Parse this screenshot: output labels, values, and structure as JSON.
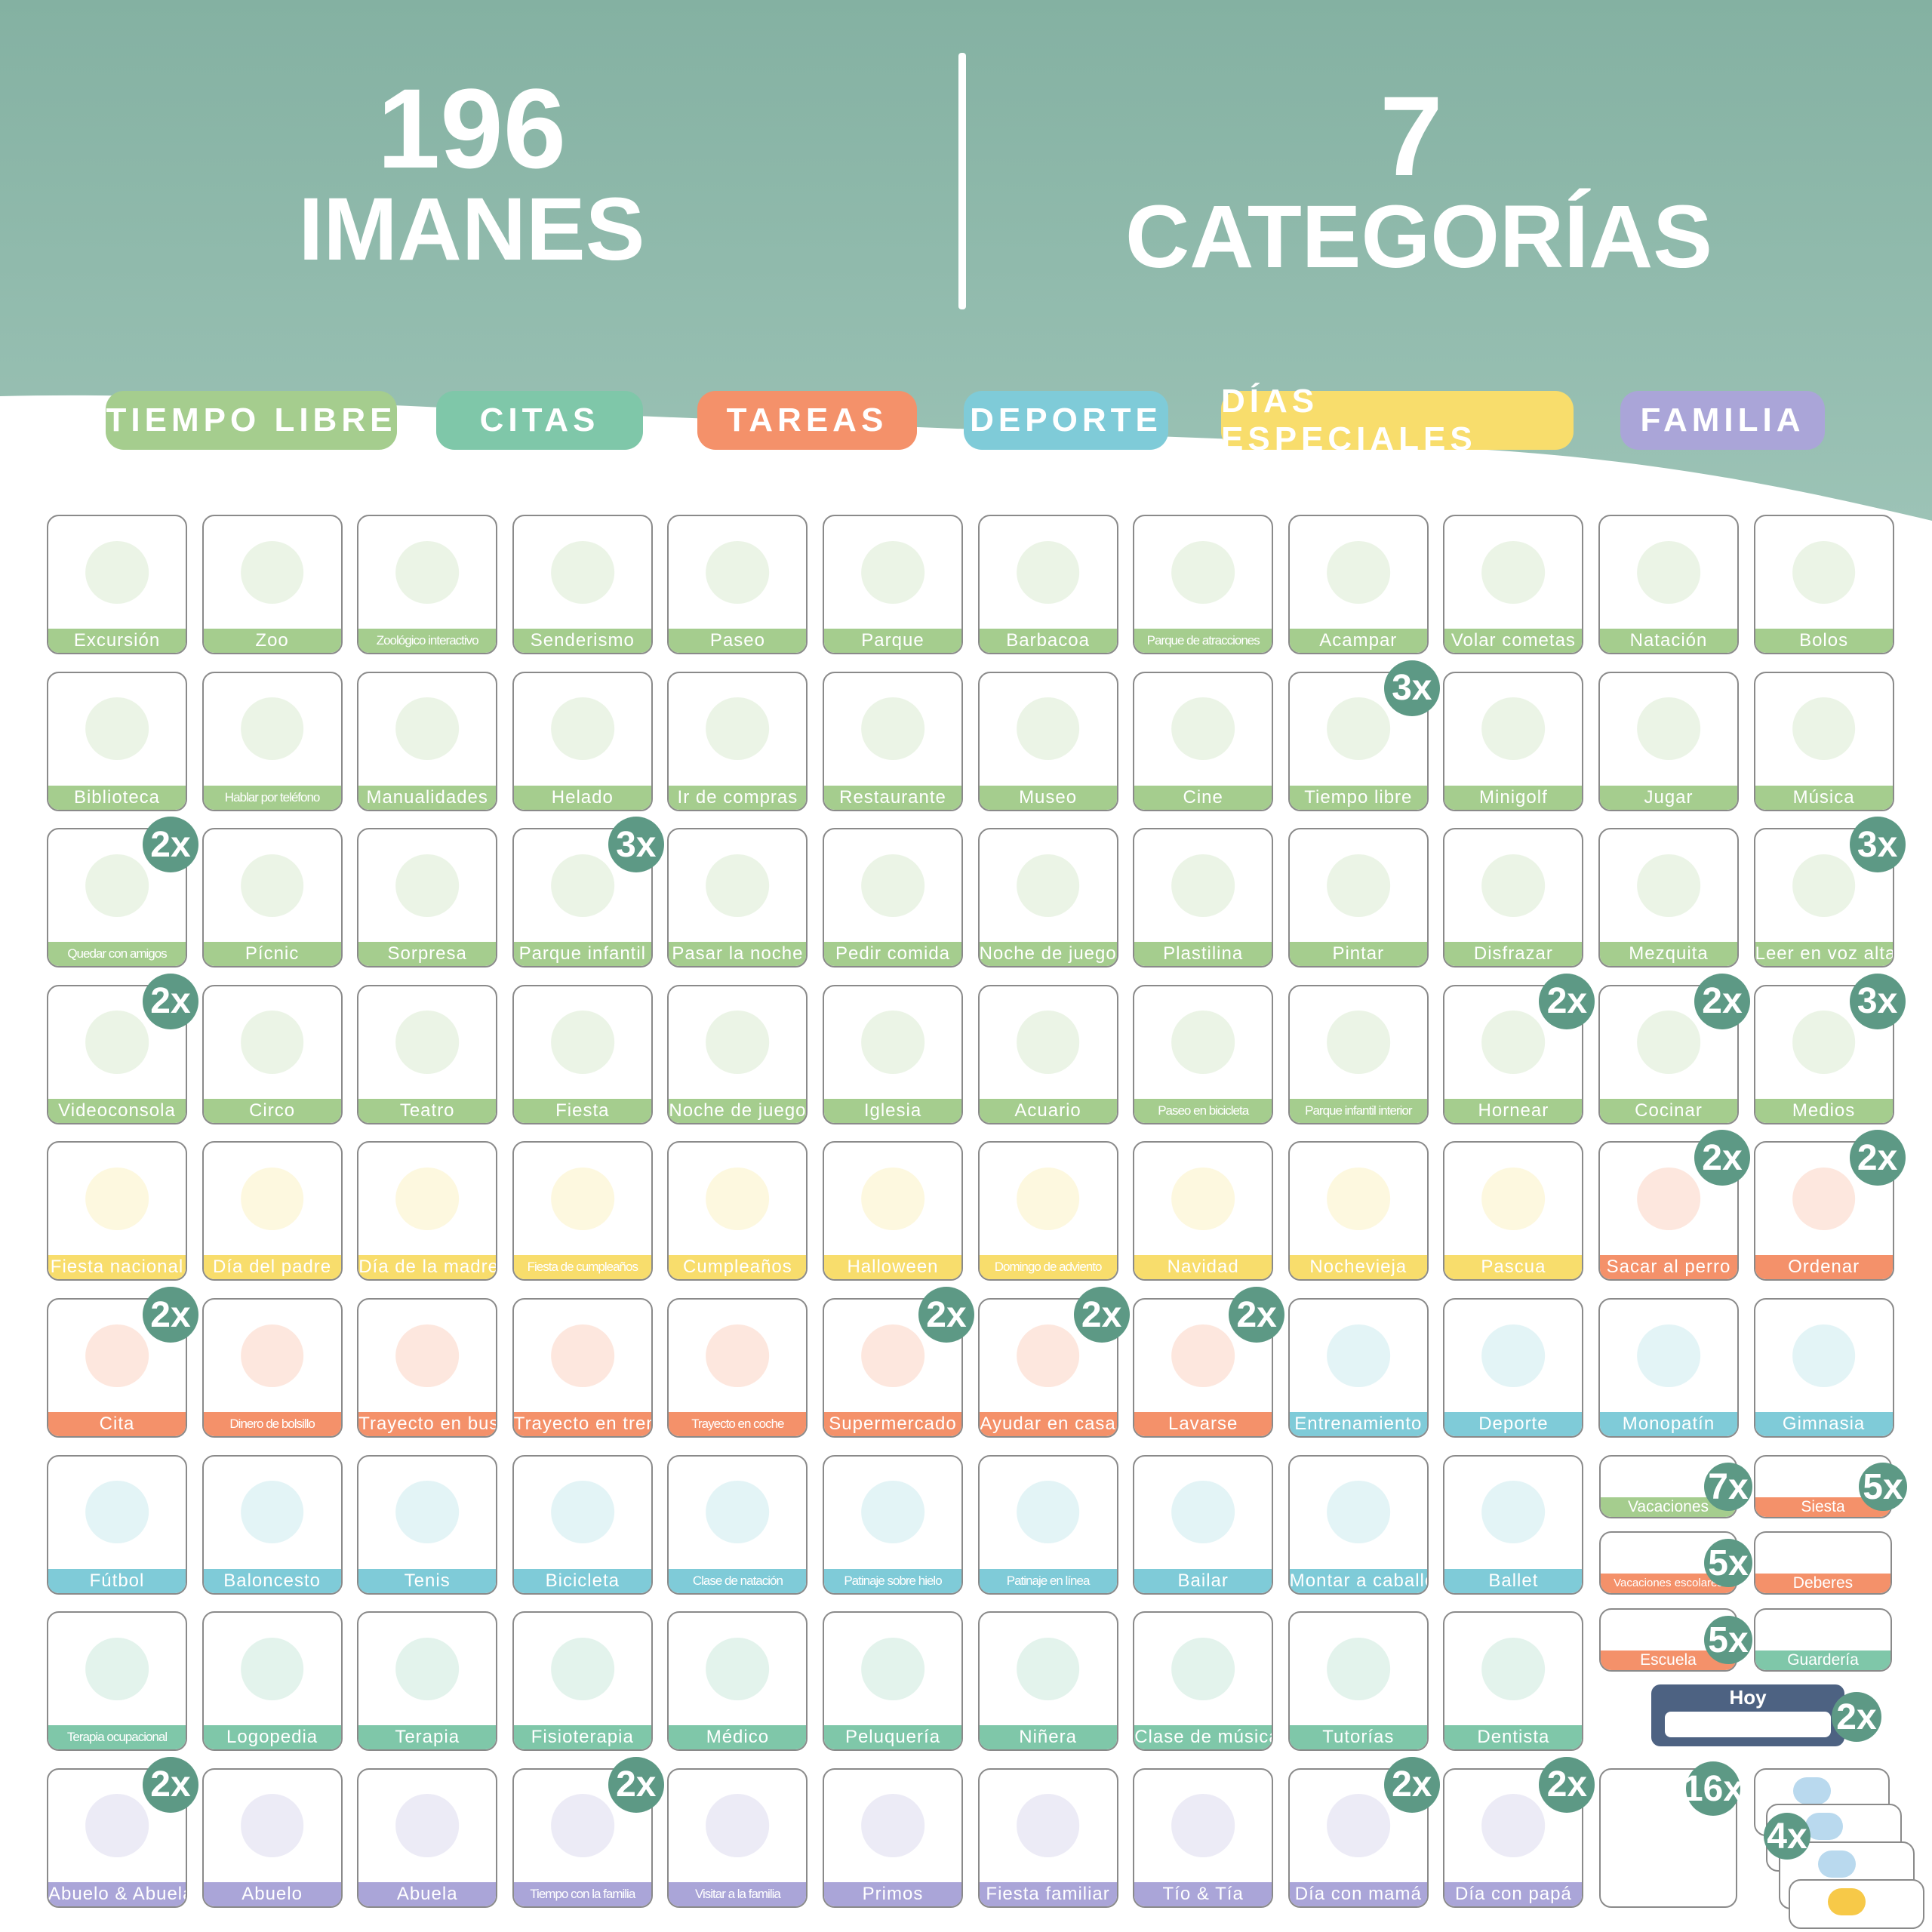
{
  "header": {
    "count": "196",
    "count_label": "IMANES",
    "cats": "7",
    "cats_label": "CATEGORÍAS"
  },
  "categories": [
    {
      "name": "TIEMPO LIBRE",
      "color": "#a5cd8e"
    },
    {
      "name": "CITAS",
      "color": "#7fc7a9"
    },
    {
      "name": "TAREAS",
      "color": "#f4916a"
    },
    {
      "name": "DEPORTE",
      "color": "#7fcbd8"
    },
    {
      "name": "DÍAS ESPECIALES",
      "color": "#f8dd6c"
    },
    {
      "name": "FAMILIA",
      "color": "#aaa5d8"
    }
  ],
  "cards": [
    {
      "label": "Excursión",
      "color": "#a5cd8e"
    },
    {
      "label": "Zoo",
      "color": "#a5cd8e"
    },
    {
      "label": "Zoológico interactivo",
      "color": "#a5cd8e"
    },
    {
      "label": "Senderismo",
      "color": "#a5cd8e"
    },
    {
      "label": "Paseo",
      "color": "#a5cd8e"
    },
    {
      "label": "Parque",
      "color": "#a5cd8e"
    },
    {
      "label": "Barbacoa",
      "color": "#a5cd8e"
    },
    {
      "label": "Parque de atracciones",
      "color": "#a5cd8e"
    },
    {
      "label": "Acampar",
      "color": "#a5cd8e"
    },
    {
      "label": "Volar cometas",
      "color": "#a5cd8e"
    },
    {
      "label": "Natación",
      "color": "#a5cd8e"
    },
    {
      "label": "Bolos",
      "color": "#a5cd8e"
    },
    {
      "label": "Biblioteca",
      "color": "#a5cd8e"
    },
    {
      "label": "Hablar por teléfono",
      "color": "#a5cd8e"
    },
    {
      "label": "Manualidades",
      "color": "#a5cd8e"
    },
    {
      "label": "Helado",
      "color": "#a5cd8e"
    },
    {
      "label": "Ir de compras",
      "color": "#a5cd8e"
    },
    {
      "label": "Restaurante",
      "color": "#a5cd8e"
    },
    {
      "label": "Museo",
      "color": "#a5cd8e"
    },
    {
      "label": "Cine",
      "color": "#a5cd8e"
    },
    {
      "label": "Tiempo libre",
      "color": "#a5cd8e",
      "badge": "3x"
    },
    {
      "label": "Minigolf",
      "color": "#a5cd8e"
    },
    {
      "label": "Jugar",
      "color": "#a5cd8e"
    },
    {
      "label": "Música",
      "color": "#a5cd8e"
    },
    {
      "label": "Quedar con amigos",
      "color": "#a5cd8e",
      "badge": "2x"
    },
    {
      "label": "Pícnic",
      "color": "#a5cd8e"
    },
    {
      "label": "Sorpresa",
      "color": "#a5cd8e"
    },
    {
      "label": "Parque infantil",
      "color": "#a5cd8e",
      "badge": "3x"
    },
    {
      "label": "Pasar la noche",
      "color": "#a5cd8e"
    },
    {
      "label": "Pedir comida",
      "color": "#a5cd8e"
    },
    {
      "label": "Noche de juegos",
      "color": "#a5cd8e"
    },
    {
      "label": "Plastilina",
      "color": "#a5cd8e"
    },
    {
      "label": "Pintar",
      "color": "#a5cd8e"
    },
    {
      "label": "Disfrazar",
      "color": "#a5cd8e"
    },
    {
      "label": "Mezquita",
      "color": "#a5cd8e"
    },
    {
      "label": "Leer en voz alta",
      "color": "#a5cd8e",
      "badge": "3x"
    },
    {
      "label": "Videoconsola",
      "color": "#a5cd8e",
      "badge": "2x"
    },
    {
      "label": "Circo",
      "color": "#a5cd8e"
    },
    {
      "label": "Teatro",
      "color": "#a5cd8e"
    },
    {
      "label": "Fiesta",
      "color": "#a5cd8e"
    },
    {
      "label": "Noche de juegos",
      "color": "#a5cd8e"
    },
    {
      "label": "Iglesia",
      "color": "#a5cd8e"
    },
    {
      "label": "Acuario",
      "color": "#a5cd8e"
    },
    {
      "label": "Paseo en bicicleta",
      "color": "#a5cd8e"
    },
    {
      "label": "Parque infantil interior",
      "color": "#a5cd8e"
    },
    {
      "label": "Hornear",
      "color": "#a5cd8e",
      "badge": "2x"
    },
    {
      "label": "Cocinar",
      "color": "#a5cd8e",
      "badge": "2x"
    },
    {
      "label": "Medios",
      "color": "#a5cd8e",
      "badge": "3x"
    },
    {
      "label": "Fiesta nacional",
      "color": "#f8dd6c"
    },
    {
      "label": "Día del padre",
      "color": "#f8dd6c"
    },
    {
      "label": "Día de la madre",
      "color": "#f8dd6c"
    },
    {
      "label": "Fiesta de cumpleaños",
      "color": "#f8dd6c"
    },
    {
      "label": "Cumpleaños",
      "color": "#f8dd6c"
    },
    {
      "label": "Halloween",
      "color": "#f8dd6c"
    },
    {
      "label": "Domingo de adviento",
      "color": "#f8dd6c"
    },
    {
      "label": "Navidad",
      "color": "#f8dd6c"
    },
    {
      "label": "Nochevieja",
      "color": "#f8dd6c"
    },
    {
      "label": "Pascua",
      "color": "#f8dd6c"
    },
    {
      "label": "Sacar al perro",
      "color": "#f4916a",
      "badge": "2x"
    },
    {
      "label": "Ordenar",
      "color": "#f4916a",
      "badge": "2x"
    },
    {
      "label": "Cita",
      "color": "#f4916a",
      "badge": "2x"
    },
    {
      "label": "Dinero de bolsillo",
      "color": "#f4916a"
    },
    {
      "label": "Trayecto en bus",
      "color": "#f4916a"
    },
    {
      "label": "Trayecto en tren",
      "color": "#f4916a"
    },
    {
      "label": "Trayecto en coche",
      "color": "#f4916a"
    },
    {
      "label": "Supermercado",
      "color": "#f4916a",
      "badge": "2x"
    },
    {
      "label": "Ayudar en casa",
      "color": "#f4916a",
      "badge": "2x"
    },
    {
      "label": "Lavarse",
      "color": "#f4916a",
      "badge": "2x"
    },
    {
      "label": "Entrenamiento",
      "color": "#7fcbd8"
    },
    {
      "label": "Deporte",
      "color": "#7fcbd8"
    },
    {
      "label": "Monopatín",
      "color": "#7fcbd8"
    },
    {
      "label": "Gimnasia",
      "color": "#7fcbd8"
    },
    {
      "label": "Fútbol",
      "color": "#7fcbd8"
    },
    {
      "label": "Baloncesto",
      "color": "#7fcbd8"
    },
    {
      "label": "Tenis",
      "color": "#7fcbd8"
    },
    {
      "label": "Bicicleta",
      "color": "#7fcbd8"
    },
    {
      "label": "Clase de natación",
      "color": "#7fcbd8"
    },
    {
      "label": "Patinaje sobre hielo",
      "color": "#7fcbd8"
    },
    {
      "label": "Patinaje en línea",
      "color": "#7fcbd8"
    },
    {
      "label": "Bailar",
      "color": "#7fcbd8"
    },
    {
      "label": "Montar a caballo",
      "color": "#7fcbd8"
    },
    {
      "label": "Ballet",
      "color": "#7fcbd8"
    },
    {
      "label": "Terapia ocupacional",
      "color": "#7fc7a9"
    },
    {
      "label": "Logopedia",
      "color": "#7fc7a9"
    },
    {
      "label": "Terapia",
      "color": "#7fc7a9"
    },
    {
      "label": "Fisioterapia",
      "color": "#7fc7a9"
    },
    {
      "label": "Médico",
      "color": "#7fc7a9"
    },
    {
      "label": "Peluquería",
      "color": "#7fc7a9"
    },
    {
      "label": "Niñera",
      "color": "#7fc7a9"
    },
    {
      "label": "Clase de música",
      "color": "#7fc7a9"
    },
    {
      "label": "Tutorías",
      "color": "#7fc7a9"
    },
    {
      "label": "Dentista",
      "color": "#7fc7a9"
    },
    {
      "label": "Abuelo & Abuela",
      "color": "#aaa5d8",
      "badge": "2x"
    },
    {
      "label": "Abuelo",
      "color": "#aaa5d8"
    },
    {
      "label": "Abuela",
      "color": "#aaa5d8"
    },
    {
      "label": "Tiempo con la familia",
      "color": "#aaa5d8",
      "badge": "2x"
    },
    {
      "label": "Visitar a la familia",
      "color": "#aaa5d8"
    },
    {
      "label": "Primos",
      "color": "#aaa5d8"
    },
    {
      "label": "Fiesta familiar",
      "color": "#aaa5d8"
    },
    {
      "label": "Tío & Tía",
      "color": "#aaa5d8"
    },
    {
      "label": "Día con mamá",
      "color": "#aaa5d8",
      "badge": "2x"
    },
    {
      "label": "Día con papá",
      "color": "#aaa5d8",
      "badge": "2x"
    }
  ],
  "small_cards": [
    {
      "label": "Vacaciones",
      "color": "#a5cd8e",
      "badge": "7x"
    },
    {
      "label": "Siesta",
      "color": "#f4916a",
      "badge": "5x"
    },
    {
      "label": "Vacaciones escolares",
      "color": "#f4916a",
      "badge": "5x"
    },
    {
      "label": "Deberes",
      "color": "#f4916a"
    },
    {
      "label": "Escuela",
      "color": "#f4916a",
      "badge": "5x"
    },
    {
      "label": "Guardería",
      "color": "#7fc7a9"
    }
  ],
  "today": {
    "label": "Hoy",
    "badge": "2x"
  },
  "blank": {
    "badge": "16x"
  },
  "weather": {
    "badge": "4x"
  }
}
